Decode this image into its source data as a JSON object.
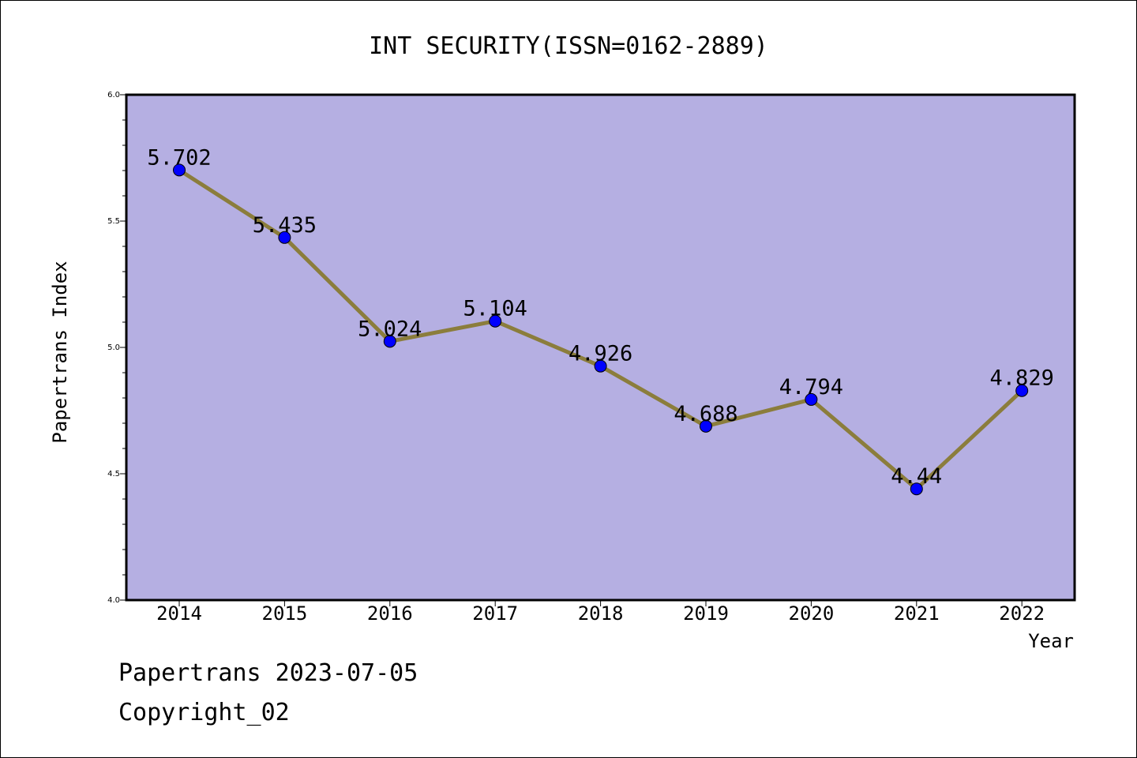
{
  "chart_data": {
    "type": "line",
    "title": "INT SECURITY(ISSN=0162-2889)",
    "xlabel": "Year",
    "ylabel": "Papertrans Index",
    "categories": [
      "2014",
      "2015",
      "2016",
      "2017",
      "2018",
      "2019",
      "2020",
      "2021",
      "2022"
    ],
    "values": [
      5.702,
      5.435,
      5.024,
      5.104,
      4.926,
      4.688,
      4.794,
      4.44,
      4.829
    ],
    "data_labels": [
      "5.702",
      "5.435",
      "5.024",
      "5.104",
      "4.926",
      "4.688",
      "4.794",
      "4.44",
      "4.829"
    ],
    "ylim": [
      4.0,
      6.0
    ],
    "yticks": [
      "4.0",
      "4.5",
      "5.0",
      "5.5",
      "6.0"
    ],
    "ytick_values": [
      4.0,
      4.5,
      5.0,
      5.5,
      6.0
    ],
    "grid": false,
    "legend": "none",
    "colors": {
      "plot_background": "#b5afe2",
      "line": "#8b7d3c",
      "marker": "#0000ff",
      "axis": "#000000"
    }
  },
  "footer": {
    "date_line": "Papertrans 2023-07-05",
    "copyright": "Copyright_02"
  }
}
